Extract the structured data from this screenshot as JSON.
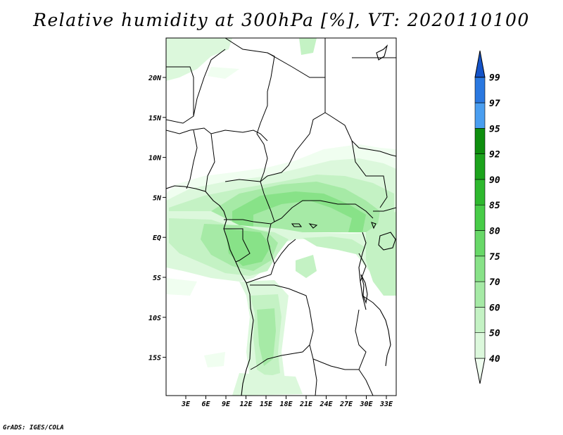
{
  "title": "Relative humidity at 300hPa [%], VT: 2020110100",
  "credit": "GrADS: IGES/COLA",
  "map": {
    "lat_labels": [
      "20N",
      "15N",
      "10N",
      "5N",
      "EQ",
      "5S",
      "10S",
      "15S"
    ],
    "lon_labels": [
      "3E",
      "6E",
      "9E",
      "12E",
      "15E",
      "18E",
      "21E",
      "24E",
      "27E",
      "30E",
      "33E"
    ]
  },
  "colorbar": {
    "levels": [
      "40",
      "50",
      "60",
      "70",
      "75",
      "80",
      "85",
      "90",
      "92",
      "95",
      "97",
      "99"
    ],
    "colors": [
      "#f0fef0",
      "#dcf8dc",
      "#c4f2c4",
      "#a6eaa6",
      "#88e288",
      "#68d868",
      "#48cc48",
      "#2eb82e",
      "#1ca31c",
      "#0e8e0e",
      "#4a9ef0",
      "#2a78e0",
      "#1453c8"
    ]
  }
}
